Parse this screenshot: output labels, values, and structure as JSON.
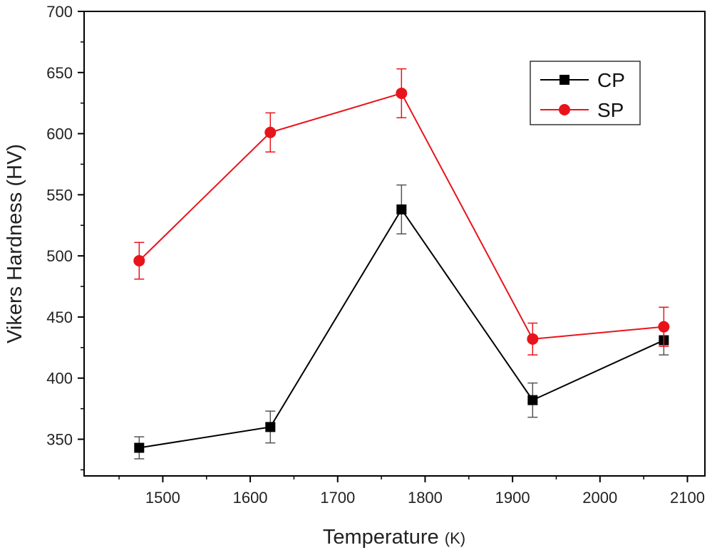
{
  "chart_data": {
    "type": "line",
    "xlabel": "Temperature",
    "xunit": "(K)",
    "ylabel": "Vikers Hardness (HV)",
    "xlim": [
      1410,
      2120
    ],
    "ylim": [
      320,
      700
    ],
    "xticks": [
      1500,
      1600,
      1700,
      1800,
      1900,
      2000,
      2100
    ],
    "yticks": [
      350,
      400,
      450,
      500,
      550,
      600,
      650,
      700
    ],
    "legend_position": "top-right",
    "grid": false,
    "series": [
      {
        "name": "CP",
        "color": "#000000",
        "marker": "square",
        "x": [
          1473,
          1623,
          1773,
          1923,
          2073
        ],
        "y": [
          343,
          360,
          538,
          382,
          431
        ],
        "err": [
          9,
          13,
          20,
          14,
          12
        ]
      },
      {
        "name": "SP",
        "color": "#e8141b",
        "marker": "circle",
        "x": [
          1473,
          1623,
          1773,
          1923,
          2073
        ],
        "y": [
          496,
          601,
          633,
          432,
          442
        ],
        "err": [
          15,
          16,
          20,
          13,
          16
        ]
      }
    ]
  }
}
